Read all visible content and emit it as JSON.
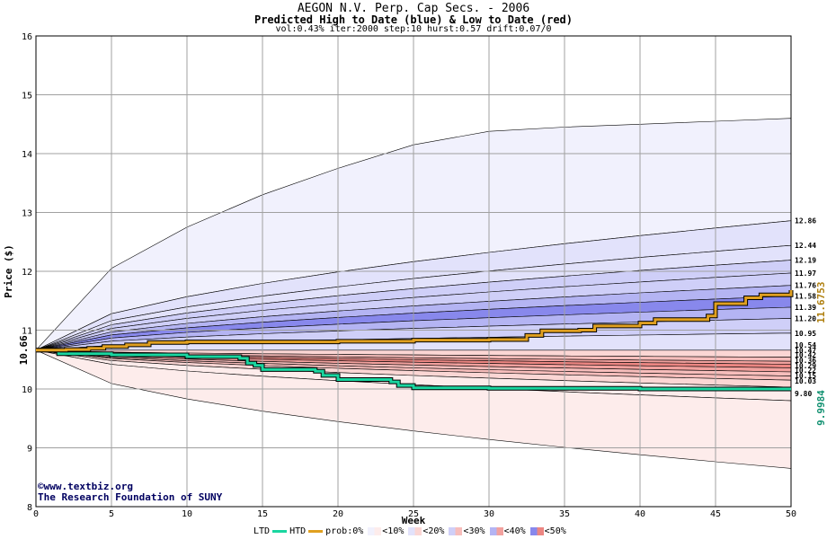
{
  "header": {
    "title": "AEGON N.V. Perp. Cap Secs. - 2006",
    "subtitle": "Predicted High to Date (blue) &  Low to Date (red)",
    "params": "vol:0.43% iter:2000 step:10 hurst:0.57 drift:0.07/0"
  },
  "credits": {
    "line1": "©www.textbiz.org",
    "line2": "The Research Foundation of SUNY"
  },
  "legend": {
    "ltd": "LTD",
    "htd": "HTD",
    "prob": "prob:0%",
    "p10": "<10%",
    "p20": "<20%",
    "p30": "<30%",
    "p40": "<40%",
    "p50": "<50%"
  },
  "colors": {
    "ltd_line": "#1ad6a0",
    "htd_line": "#e0a020",
    "blue_bands": [
      "#f1f1fd",
      "#e2e2fb",
      "#cfcff8",
      "#b4b4f3",
      "#8888ec"
    ],
    "red_bands": [
      "#fdeceb",
      "#fbd6d4",
      "#f7bdbb",
      "#f2a19e",
      "#ec8682"
    ],
    "grid": "#a0a0a0"
  },
  "chart_data": {
    "type": "area",
    "xlabel": "Week",
    "ylabel": "Price ($)",
    "xlim": [
      0,
      50
    ],
    "ylim": [
      8,
      16
    ],
    "xticks": [
      0,
      5,
      10,
      15,
      20,
      25,
      30,
      35,
      40,
      45,
      50
    ],
    "yticks": [
      8,
      9,
      10,
      11,
      12,
      13,
      14,
      15,
      16
    ],
    "start_price": "10.66",
    "start_value": 10.66,
    "high_band_edges_end": [
      14.6,
      12.86,
      12.44,
      12.19,
      11.97,
      11.76,
      11.58,
      11.39,
      11.2,
      10.95,
      10.66
    ],
    "high_outer_curve": {
      "x": [
        0,
        5,
        10,
        15,
        20,
        25,
        28,
        35,
        40,
        45,
        50
      ],
      "y": [
        10.66,
        12.05,
        12.75,
        13.3,
        13.75,
        14.15,
        14.35,
        14.45,
        14.5,
        14.55,
        14.6
      ]
    },
    "low_band_edges_end": [
      10.66,
      10.54,
      10.47,
      10.42,
      10.36,
      10.29,
      10.22,
      10.15,
      10.03,
      9.8,
      8.65
    ],
    "low_outer_curve": {
      "x": [
        0,
        5,
        10,
        15,
        20,
        25,
        30,
        37,
        45,
        50
      ],
      "y": [
        10.66,
        9.85,
        9.4,
        9.15,
        9.0,
        8.88,
        8.8,
        8.65,
        8.65,
        8.65
      ]
    },
    "right_labels_high": [
      "12.86",
      "12.44",
      "12.19",
      "11.97",
      "11.76",
      "11.58",
      "11.39",
      "11.20",
      "10.95"
    ],
    "right_labels_low": [
      "10.54",
      "10.47",
      "10.42",
      "10.36",
      "10.29",
      "10.22",
      "10.15",
      "10.03",
      "9.80"
    ],
    "htd_label": "11.6753",
    "ltd_label": "9.9984",
    "htd_series": {
      "name": "HTD",
      "x": [
        0,
        2,
        3.5,
        4.5,
        6,
        7.5,
        10,
        15,
        20,
        25,
        30,
        32.5,
        33.5,
        36,
        37,
        40,
        41,
        44.5,
        45,
        47,
        48,
        50
      ],
      "y": [
        10.66,
        10.67,
        10.69,
        10.72,
        10.75,
        10.79,
        10.8,
        10.8,
        10.81,
        10.83,
        10.84,
        10.91,
        10.99,
        11.0,
        11.07,
        11.12,
        11.18,
        11.24,
        11.45,
        11.55,
        11.6,
        11.68
      ]
    },
    "ltd_series": {
      "name": "LTD",
      "x": [
        0,
        1.5,
        5,
        10,
        13.5,
        14,
        14.5,
        15,
        18.5,
        19,
        20,
        23.5,
        24,
        25,
        30,
        35,
        40,
        45,
        50
      ],
      "y": [
        10.66,
        10.6,
        10.58,
        10.55,
        10.52,
        10.44,
        10.4,
        10.33,
        10.3,
        10.23,
        10.16,
        10.12,
        10.06,
        10.02,
        10.01,
        10.01,
        10.0,
        10.0,
        10.0
      ]
    }
  }
}
